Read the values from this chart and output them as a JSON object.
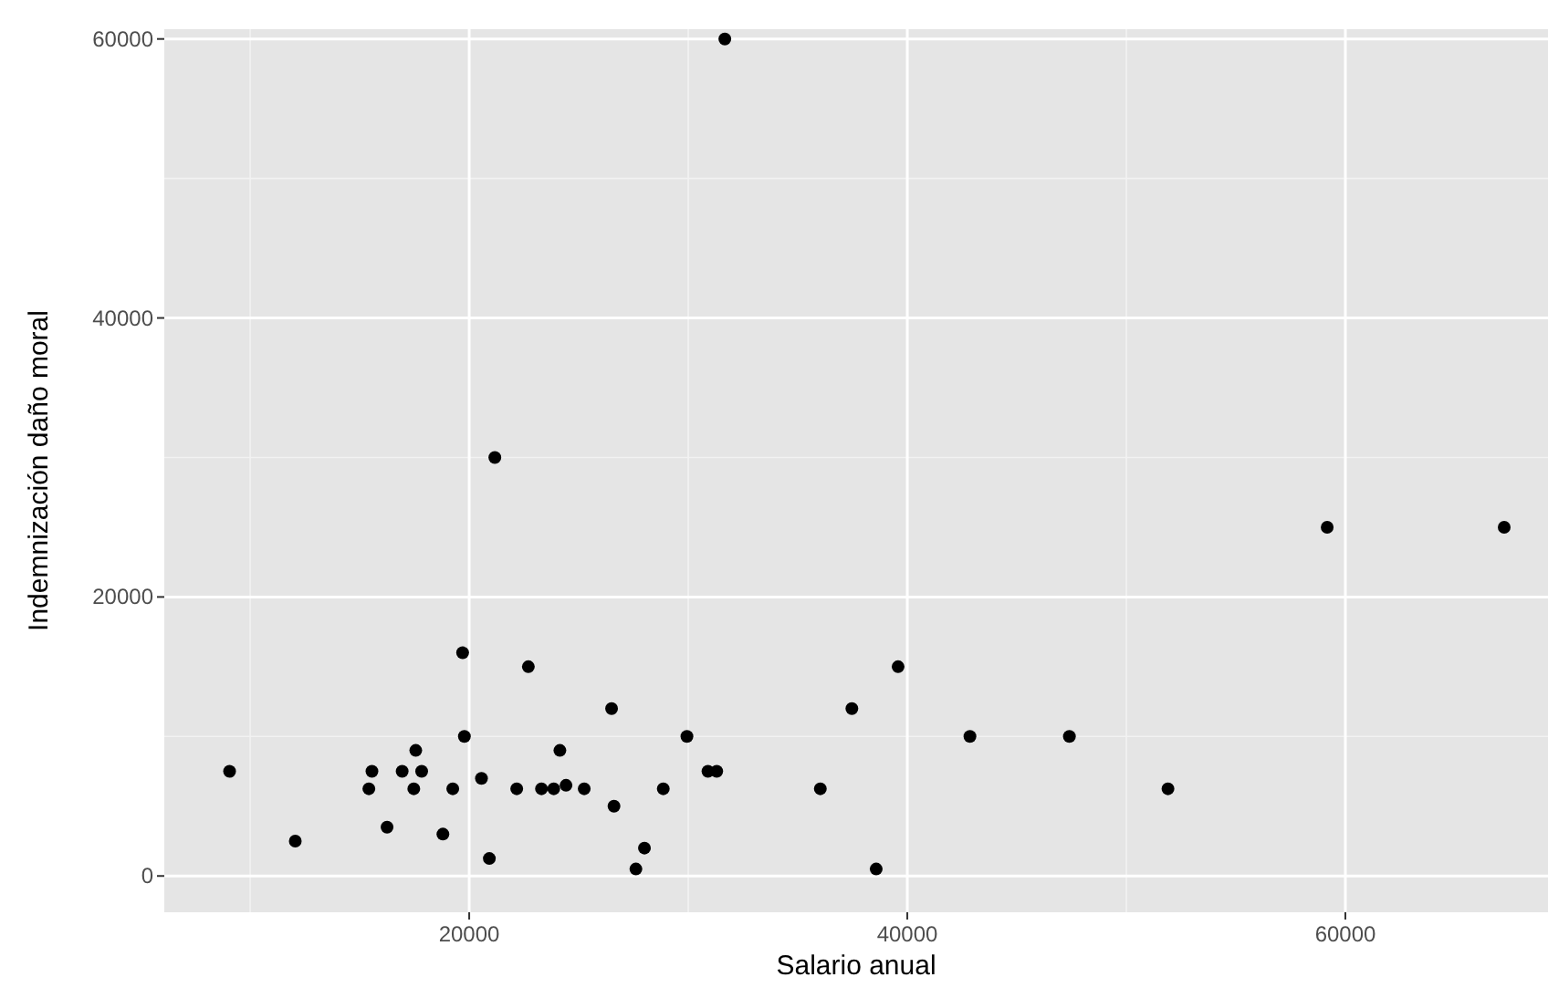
{
  "chart_data": {
    "type": "scatter",
    "xlabel": "Salario anual",
    "ylabel": "Indemnización daño moral",
    "x": [
      9060,
      12060,
      19700,
      22700,
      26500,
      19780,
      29940,
      17560,
      24140,
      15560,
      16940,
      17830,
      30900,
      31300,
      15420,
      17280,
      17470,
      19250,
      20560,
      22170,
      23300,
      23860,
      24420,
      25250,
      26610,
      16250,
      18800,
      20920,
      28860,
      28000,
      27610,
      36030,
      37470,
      39580,
      38580,
      42860,
      47400,
      51900,
      59170,
      67250,
      31670,
      21170
    ],
    "values": [
      7500,
      2500,
      16000,
      15000,
      12000,
      10000,
      10000,
      9000,
      9000,
      7500,
      7500,
      7500,
      7500,
      7500,
      6250,
      null,
      6250,
      6250,
      7000,
      6250,
      6250,
      6250,
      6500,
      6250,
      5000,
      3500,
      3000,
      1250,
      6250,
      2000,
      500,
      6250,
      12000,
      15000,
      500,
      10000,
      10000,
      6250,
      25000,
      25000,
      60000,
      30000
    ],
    "color": "#000000",
    "marker": "circle",
    "xlim": [
      6080,
      69250
    ],
    "ylim": [
      -2600,
      60700
    ],
    "xticks": [
      20000,
      40000,
      60000
    ],
    "yticks": [
      0,
      20000,
      40000,
      60000
    ],
    "grid": true
  }
}
